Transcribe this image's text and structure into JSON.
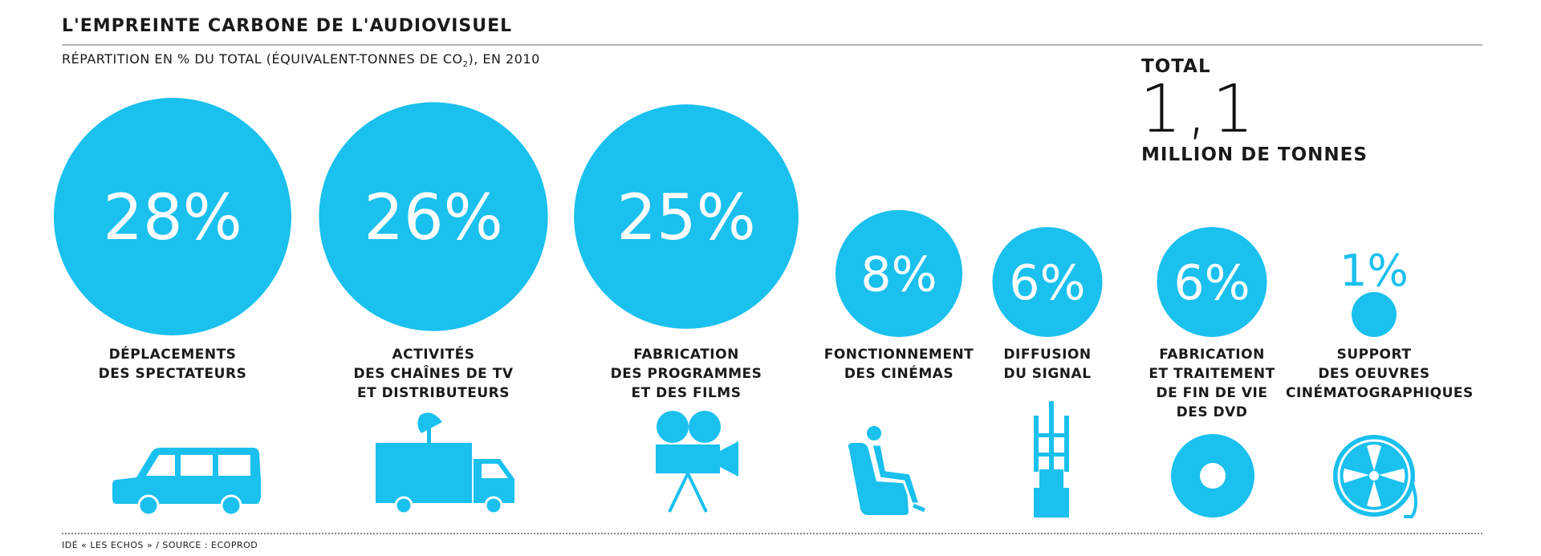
{
  "header": {
    "title": "L'EMPREINTE CARBONE DE L'AUDIOVISUEL",
    "subtitle_pre": "RÉPARTITION EN % DU TOTAL (ÉQUIVALENT-TONNES DE CO",
    "subtitle_sub": "2",
    "subtitle_post": "), EN 2010"
  },
  "total": {
    "label": "TOTAL",
    "value": "1,1",
    "unit": "MILLION DE TONNES"
  },
  "colors": {
    "accent": "#1ac0ee"
  },
  "chart_data": {
    "type": "bubble",
    "title": "L'EMPREINTE CARBONE DE L'AUDIOVISUEL",
    "subtitle": "RÉPARTITION EN % DU TOTAL (ÉQUIVALENT-TONNES DE CO2), EN 2010",
    "unit": "%",
    "categories": [
      {
        "label_lines": [
          "DÉPLACEMENTS",
          "DES SPECTATEURS"
        ],
        "value": 28,
        "display": "28%",
        "icon": "car-icon"
      },
      {
        "label_lines": [
          "ACTIVITÉS",
          "DES CHAÎNES DE TV",
          "ET DISTRIBUTEURS"
        ],
        "value": 26,
        "display": "26%",
        "icon": "broadcast-truck-icon"
      },
      {
        "label_lines": [
          "FABRICATION",
          "DES PROGRAMMES",
          "ET DES FILMS"
        ],
        "value": 25,
        "display": "25%",
        "icon": "film-camera-icon"
      },
      {
        "label_lines": [
          "FONCTIONNEMENT",
          "DES CINÉMAS"
        ],
        "value": 8,
        "display": "8%",
        "icon": "cinema-seat-icon"
      },
      {
        "label_lines": [
          "DIFFUSION",
          "DU SIGNAL"
        ],
        "value": 6,
        "display": "6%",
        "icon": "antenna-tower-icon"
      },
      {
        "label_lines": [
          "FABRICATION",
          "ET TRAITEMENT",
          "DE FIN DE VIE",
          "DES DVD"
        ],
        "value": 6,
        "display": "6%",
        "icon": "dvd-icon"
      },
      {
        "label_lines": [
          "SUPPORT",
          "DES OEUVRES",
          "CINÉMATOGRAPHIQUES"
        ],
        "value": 1,
        "display": "1%",
        "icon": "film-reel-icon"
      }
    ]
  },
  "footer": {
    "source": "IDÉ « LES ECHOS » / SOURCE : ECOPROD"
  }
}
